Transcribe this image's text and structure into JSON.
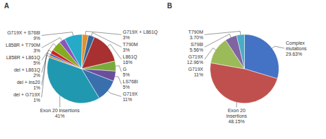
{
  "chart_data": [
    {
      "type": "pie",
      "title": "A",
      "categories": [
        "L861Q\n16%",
        "G\n5%",
        "LS768I\n5%",
        "G719X\n11%",
        "Exon 20 insertions\n41%",
        "del + G719X\n1%",
        "del + ins20\n1%",
        "del + L861Q\n2%",
        "L858R + L861Q\n5%",
        "L858R + T790M\n3%",
        "G719X + S768I\n9%",
        "G719X + L861Q\n3%",
        "T790M\n3%"
      ],
      "values": [
        16,
        5,
        5,
        11,
        41,
        1,
        1,
        2,
        5,
        3,
        9,
        3,
        3
      ],
      "colors": [
        "#a83030",
        "#7aaa3a",
        "#6a4f9e",
        "#3a6fad",
        "#2098b0",
        "#d4852a",
        "#3355cc",
        "#cc2222",
        "#88aa22",
        "#8855bb",
        "#25aac8",
        "#e09030",
        "#336699"
      ]
    },
    {
      "type": "pie",
      "title": "B",
      "categories": [
        "Complex\nmutations\n29.63%",
        "Exon 20\ninsertions\n48.15%",
        "G719X\n12.96%",
        "S798I\n5.56%",
        "T790M\n3.70%"
      ],
      "values": [
        29.63,
        48.15,
        12.96,
        5.56,
        3.7
      ],
      "colors": [
        "#4472c4",
        "#c0504d",
        "#9bbb59",
        "#8064a2",
        "#4bacc6"
      ],
      "annotations": [
        "G719X\n11%"
      ]
    }
  ]
}
